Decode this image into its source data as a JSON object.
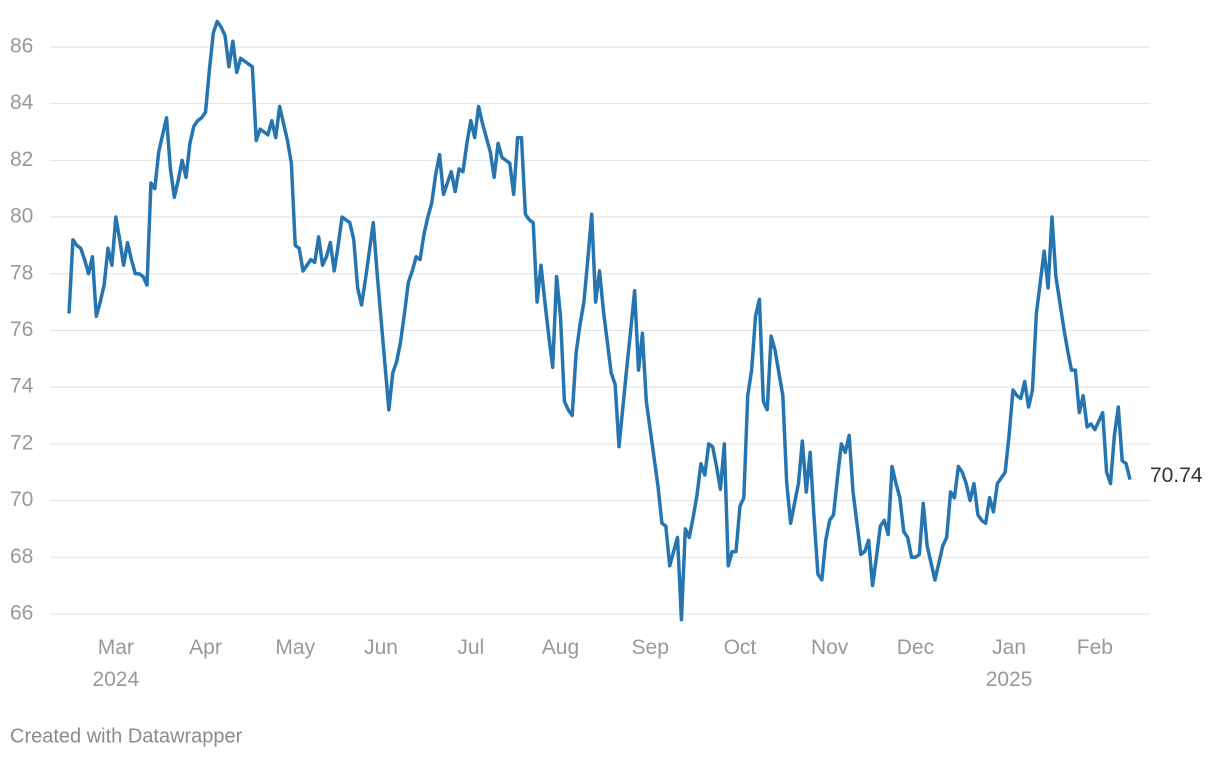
{
  "chart_data": {
    "type": "line",
    "categories": [
      null,
      null,
      null,
      null,
      null,
      null,
      null,
      null,
      null,
      null,
      null,
      null,
      "Mar 2024",
      null,
      null,
      null,
      null,
      null,
      null,
      null,
      null,
      null,
      null,
      null,
      null,
      null,
      null,
      null,
      null,
      null,
      null,
      null,
      null,
      null,
      null,
      "Apr",
      null,
      null,
      null,
      null,
      null,
      null,
      null,
      null,
      null,
      null,
      null,
      null,
      null,
      null,
      null,
      null,
      null,
      null,
      null,
      null,
      null,
      null,
      "May",
      null,
      null,
      null,
      null,
      null,
      null,
      null,
      null,
      null,
      null,
      null,
      null,
      null,
      null,
      null,
      null,
      null,
      null,
      null,
      null,
      null,
      "Jun",
      null,
      null,
      null,
      null,
      null,
      null,
      null,
      null,
      null,
      null,
      null,
      null,
      null,
      null,
      null,
      null,
      null,
      null,
      null,
      null,
      null,
      null,
      "Jul",
      null,
      null,
      null,
      null,
      null,
      null,
      null,
      null,
      null,
      null,
      null,
      null,
      null,
      null,
      null,
      null,
      null,
      null,
      null,
      null,
      null,
      null,
      "Aug",
      null,
      null,
      null,
      null,
      null,
      null,
      null,
      null,
      null,
      null,
      null,
      null,
      null,
      null,
      null,
      null,
      null,
      null,
      null,
      null,
      null,
      null,
      "Sep",
      null,
      null,
      null,
      null,
      null,
      null,
      null,
      null,
      null,
      null,
      null,
      null,
      null,
      null,
      null,
      null,
      null,
      null,
      null,
      null,
      null,
      null,
      "Oct",
      null,
      null,
      null,
      null,
      null,
      null,
      null,
      null,
      null,
      null,
      null,
      null,
      null,
      null,
      null,
      null,
      null,
      null,
      null,
      null,
      null,
      null,
      "Nov",
      null,
      null,
      null,
      null,
      null,
      null,
      null,
      null,
      null,
      null,
      null,
      null,
      null,
      null,
      null,
      null,
      null,
      null,
      null,
      null,
      null,
      "Dec",
      null,
      null,
      null,
      null,
      null,
      null,
      null,
      null,
      null,
      null,
      null,
      null,
      null,
      null,
      null,
      null,
      null,
      null,
      null,
      null,
      null,
      null,
      null,
      "Jan 2025",
      null,
      null,
      null,
      null,
      null,
      null,
      null,
      null,
      null,
      null,
      null,
      null,
      null,
      null,
      null,
      null,
      null,
      null,
      null,
      null,
      null,
      "Feb",
      null,
      null,
      null,
      null,
      null,
      null,
      null,
      null,
      null
    ],
    "series": [
      {
        "color": "#2675b0",
        "values": [
          76.6,
          79.2,
          79.0,
          78.9,
          78.5,
          78.0,
          78.6,
          76.5,
          77.0,
          77.6,
          78.9,
          78.3,
          80.0,
          79.2,
          78.3,
          79.1,
          78.5,
          78.0,
          78.0,
          77.9,
          77.6,
          81.2,
          81.0,
          82.3,
          82.9,
          83.5,
          81.7,
          80.7,
          81.3,
          82.0,
          81.4,
          82.6,
          83.2,
          83.4,
          83.5,
          83.7,
          85.2,
          86.5,
          86.9,
          86.7,
          86.4,
          85.3,
          86.2,
          85.1,
          85.6,
          85.5,
          85.4,
          85.3,
          82.7,
          83.1,
          83.0,
          82.9,
          83.4,
          82.8,
          83.9,
          83.3,
          82.7,
          81.9,
          79.0,
          78.9,
          78.1,
          78.3,
          78.5,
          78.4,
          79.3,
          78.3,
          78.6,
          79.1,
          78.1,
          79.0,
          80.0,
          79.9,
          79.8,
          79.2,
          77.5,
          76.9,
          77.8,
          78.8,
          79.8,
          78.0,
          76.4,
          74.8,
          73.2,
          74.5,
          74.9,
          75.6,
          76.6,
          77.7,
          78.1,
          78.6,
          78.5,
          79.4,
          80.0,
          80.5,
          81.5,
          82.2,
          80.8,
          81.2,
          81.6,
          80.9,
          81.7,
          81.6,
          82.6,
          83.4,
          82.8,
          83.9,
          83.3,
          82.8,
          82.3,
          81.4,
          82.6,
          82.1,
          82.0,
          81.9,
          80.8,
          82.8,
          82.8,
          80.1,
          79.9,
          79.8,
          77.0,
          78.3,
          77.0,
          75.8,
          74.7,
          77.9,
          76.5,
          73.5,
          73.2,
          73.0,
          75.2,
          76.2,
          77.0,
          78.5,
          80.1,
          77.0,
          78.1,
          76.7,
          75.6,
          74.5,
          74.1,
          71.9,
          73.3,
          74.7,
          76.0,
          77.4,
          74.6,
          75.9,
          73.5,
          72.5,
          71.5,
          70.5,
          69.2,
          69.1,
          67.7,
          68.2,
          68.7,
          65.8,
          69.0,
          68.7,
          69.4,
          70.2,
          71.3,
          70.9,
          72.0,
          71.9,
          71.2,
          70.4,
          72.0,
          67.7,
          68.2,
          68.2,
          69.8,
          70.1,
          73.7,
          74.6,
          76.5,
          77.1,
          73.5,
          73.2,
          75.8,
          75.3,
          74.5,
          73.7,
          70.6,
          69.2,
          69.9,
          70.6,
          72.1,
          70.3,
          71.7,
          69.4,
          67.4,
          67.2,
          68.6,
          69.3,
          69.5,
          70.8,
          72.0,
          71.7,
          72.3,
          70.3,
          69.2,
          68.1,
          68.2,
          68.6,
          67.0,
          68.0,
          69.1,
          69.3,
          68.8,
          71.2,
          70.6,
          70.1,
          68.9,
          68.7,
          68.0,
          68.0,
          68.1,
          69.9,
          68.4,
          67.8,
          67.2,
          67.8,
          68.4,
          68.7,
          70.3,
          70.1,
          71.2,
          71.0,
          70.6,
          70.0,
          70.6,
          69.5,
          69.3,
          69.2,
          70.1,
          69.6,
          70.6,
          70.8,
          71.0,
          72.3,
          73.9,
          73.7,
          73.6,
          74.2,
          73.3,
          73.9,
          76.6,
          77.7,
          78.8,
          77.5,
          80.0,
          77.9,
          77.0,
          76.1,
          75.3,
          74.6,
          74.6,
          73.1,
          73.7,
          72.6,
          72.7,
          72.5,
          72.8,
          73.1,
          71.0,
          70.6,
          72.3,
          73.3,
          71.4,
          71.3,
          70.74
        ]
      }
    ],
    "ylim": [
      65.6,
      87
    ],
    "yticks": [
      66,
      68,
      70,
      72,
      74,
      76,
      78,
      80,
      82,
      84,
      86
    ],
    "grid": true,
    "credit": "Created with Datawrapper"
  }
}
